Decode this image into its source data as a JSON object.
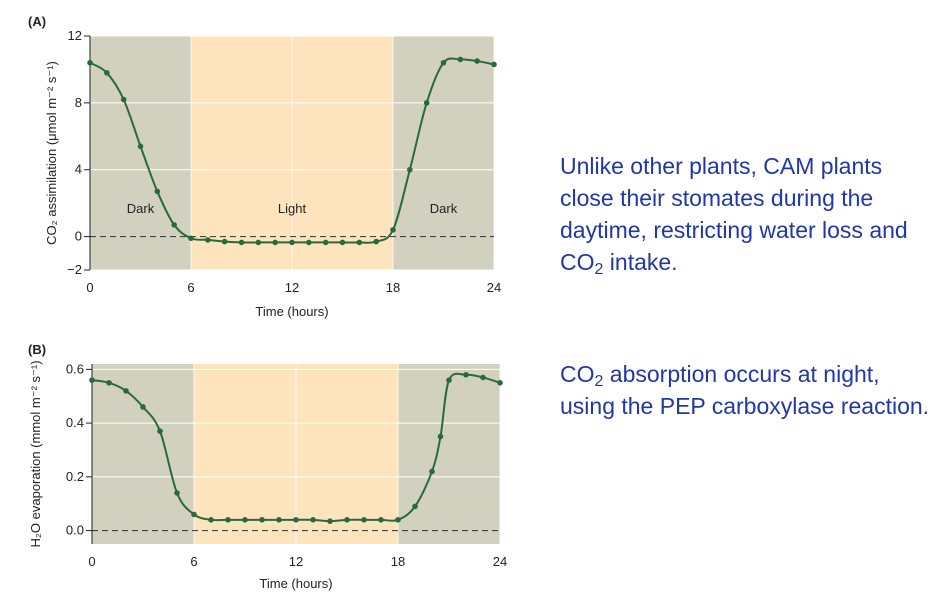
{
  "colors": {
    "dark_bg": "#d2d1bf",
    "light_bg": "#fde4bd",
    "curve": "#2a6a3a",
    "text_blue": "#2137a5"
  },
  "chart_data": [
    {
      "type": "line",
      "panel": "(A)",
      "xlabel": "Time (hours)",
      "ylabel": "CO₂ assimilation (μmol m⁻² s⁻¹)",
      "xlim": [
        0,
        24
      ],
      "ylim": [
        -2,
        12
      ],
      "xticks": [
        0,
        6,
        12,
        18,
        24
      ],
      "yticks": [
        12,
        8,
        4,
        0,
        -2
      ],
      "ytick_labels": [
        "12",
        "8",
        "4",
        "0",
        "−2"
      ],
      "regions": [
        {
          "label": "Dark",
          "from": 0,
          "to": 6,
          "kind": "dark"
        },
        {
          "label": "Light",
          "from": 6,
          "to": 18,
          "kind": "light"
        },
        {
          "label": "Dark",
          "from": 18,
          "to": 24,
          "kind": "dark"
        }
      ],
      "zero_line": 0,
      "series": [
        {
          "x": [
            0,
            1,
            2,
            3,
            4,
            5,
            6,
            7,
            8,
            9,
            10,
            11,
            12,
            13,
            14,
            15,
            16,
            17,
            18,
            19,
            20,
            21,
            22,
            23,
            24
          ],
          "y": [
            10.4,
            9.8,
            8.2,
            5.4,
            2.7,
            0.7,
            -0.1,
            -0.2,
            -0.3,
            -0.35,
            -0.35,
            -0.35,
            -0.35,
            -0.35,
            -0.35,
            -0.35,
            -0.35,
            -0.3,
            0.4,
            4.0,
            8.0,
            10.4,
            10.6,
            10.5,
            10.3
          ]
        }
      ]
    },
    {
      "type": "line",
      "panel": "(B)",
      "xlabel": "Time (hours)",
      "ylabel": "H₂O evaporation (mmol m⁻² s⁻¹)",
      "xlim": [
        0,
        24
      ],
      "ylim": [
        -0.05,
        0.62
      ],
      "xticks": [
        0,
        6,
        12,
        18,
        24
      ],
      "yticks": [
        0.6,
        0.4,
        0.2,
        0.0
      ],
      "ytick_labels": [
        "0.6",
        "0.4",
        "0.2",
        "0.0"
      ],
      "regions": [
        {
          "label": "",
          "from": 0,
          "to": 6,
          "kind": "dark"
        },
        {
          "label": "",
          "from": 6,
          "to": 18,
          "kind": "light"
        },
        {
          "label": "",
          "from": 18,
          "to": 24,
          "kind": "dark"
        }
      ],
      "zero_line": 0,
      "series": [
        {
          "x": [
            0,
            1,
            2,
            3,
            4,
            5,
            6,
            7,
            8,
            9,
            10,
            11,
            12,
            13,
            14,
            15,
            16,
            17,
            18,
            19,
            20,
            20.5,
            21,
            22,
            23,
            24
          ],
          "y": [
            0.56,
            0.55,
            0.52,
            0.46,
            0.37,
            0.14,
            0.06,
            0.04,
            0.04,
            0.04,
            0.04,
            0.04,
            0.04,
            0.04,
            0.035,
            0.04,
            0.04,
            0.04,
            0.04,
            0.09,
            0.22,
            0.35,
            0.56,
            0.58,
            0.57,
            0.55
          ]
        }
      ]
    }
  ],
  "notes": {
    "note1": "Unlike other plants, CAM plants close their stomates during the daytime, restricting water loss and CO₂ intake.",
    "note2": "CO₂ absorption occurs at night, using the PEP carboxylase reaction."
  }
}
